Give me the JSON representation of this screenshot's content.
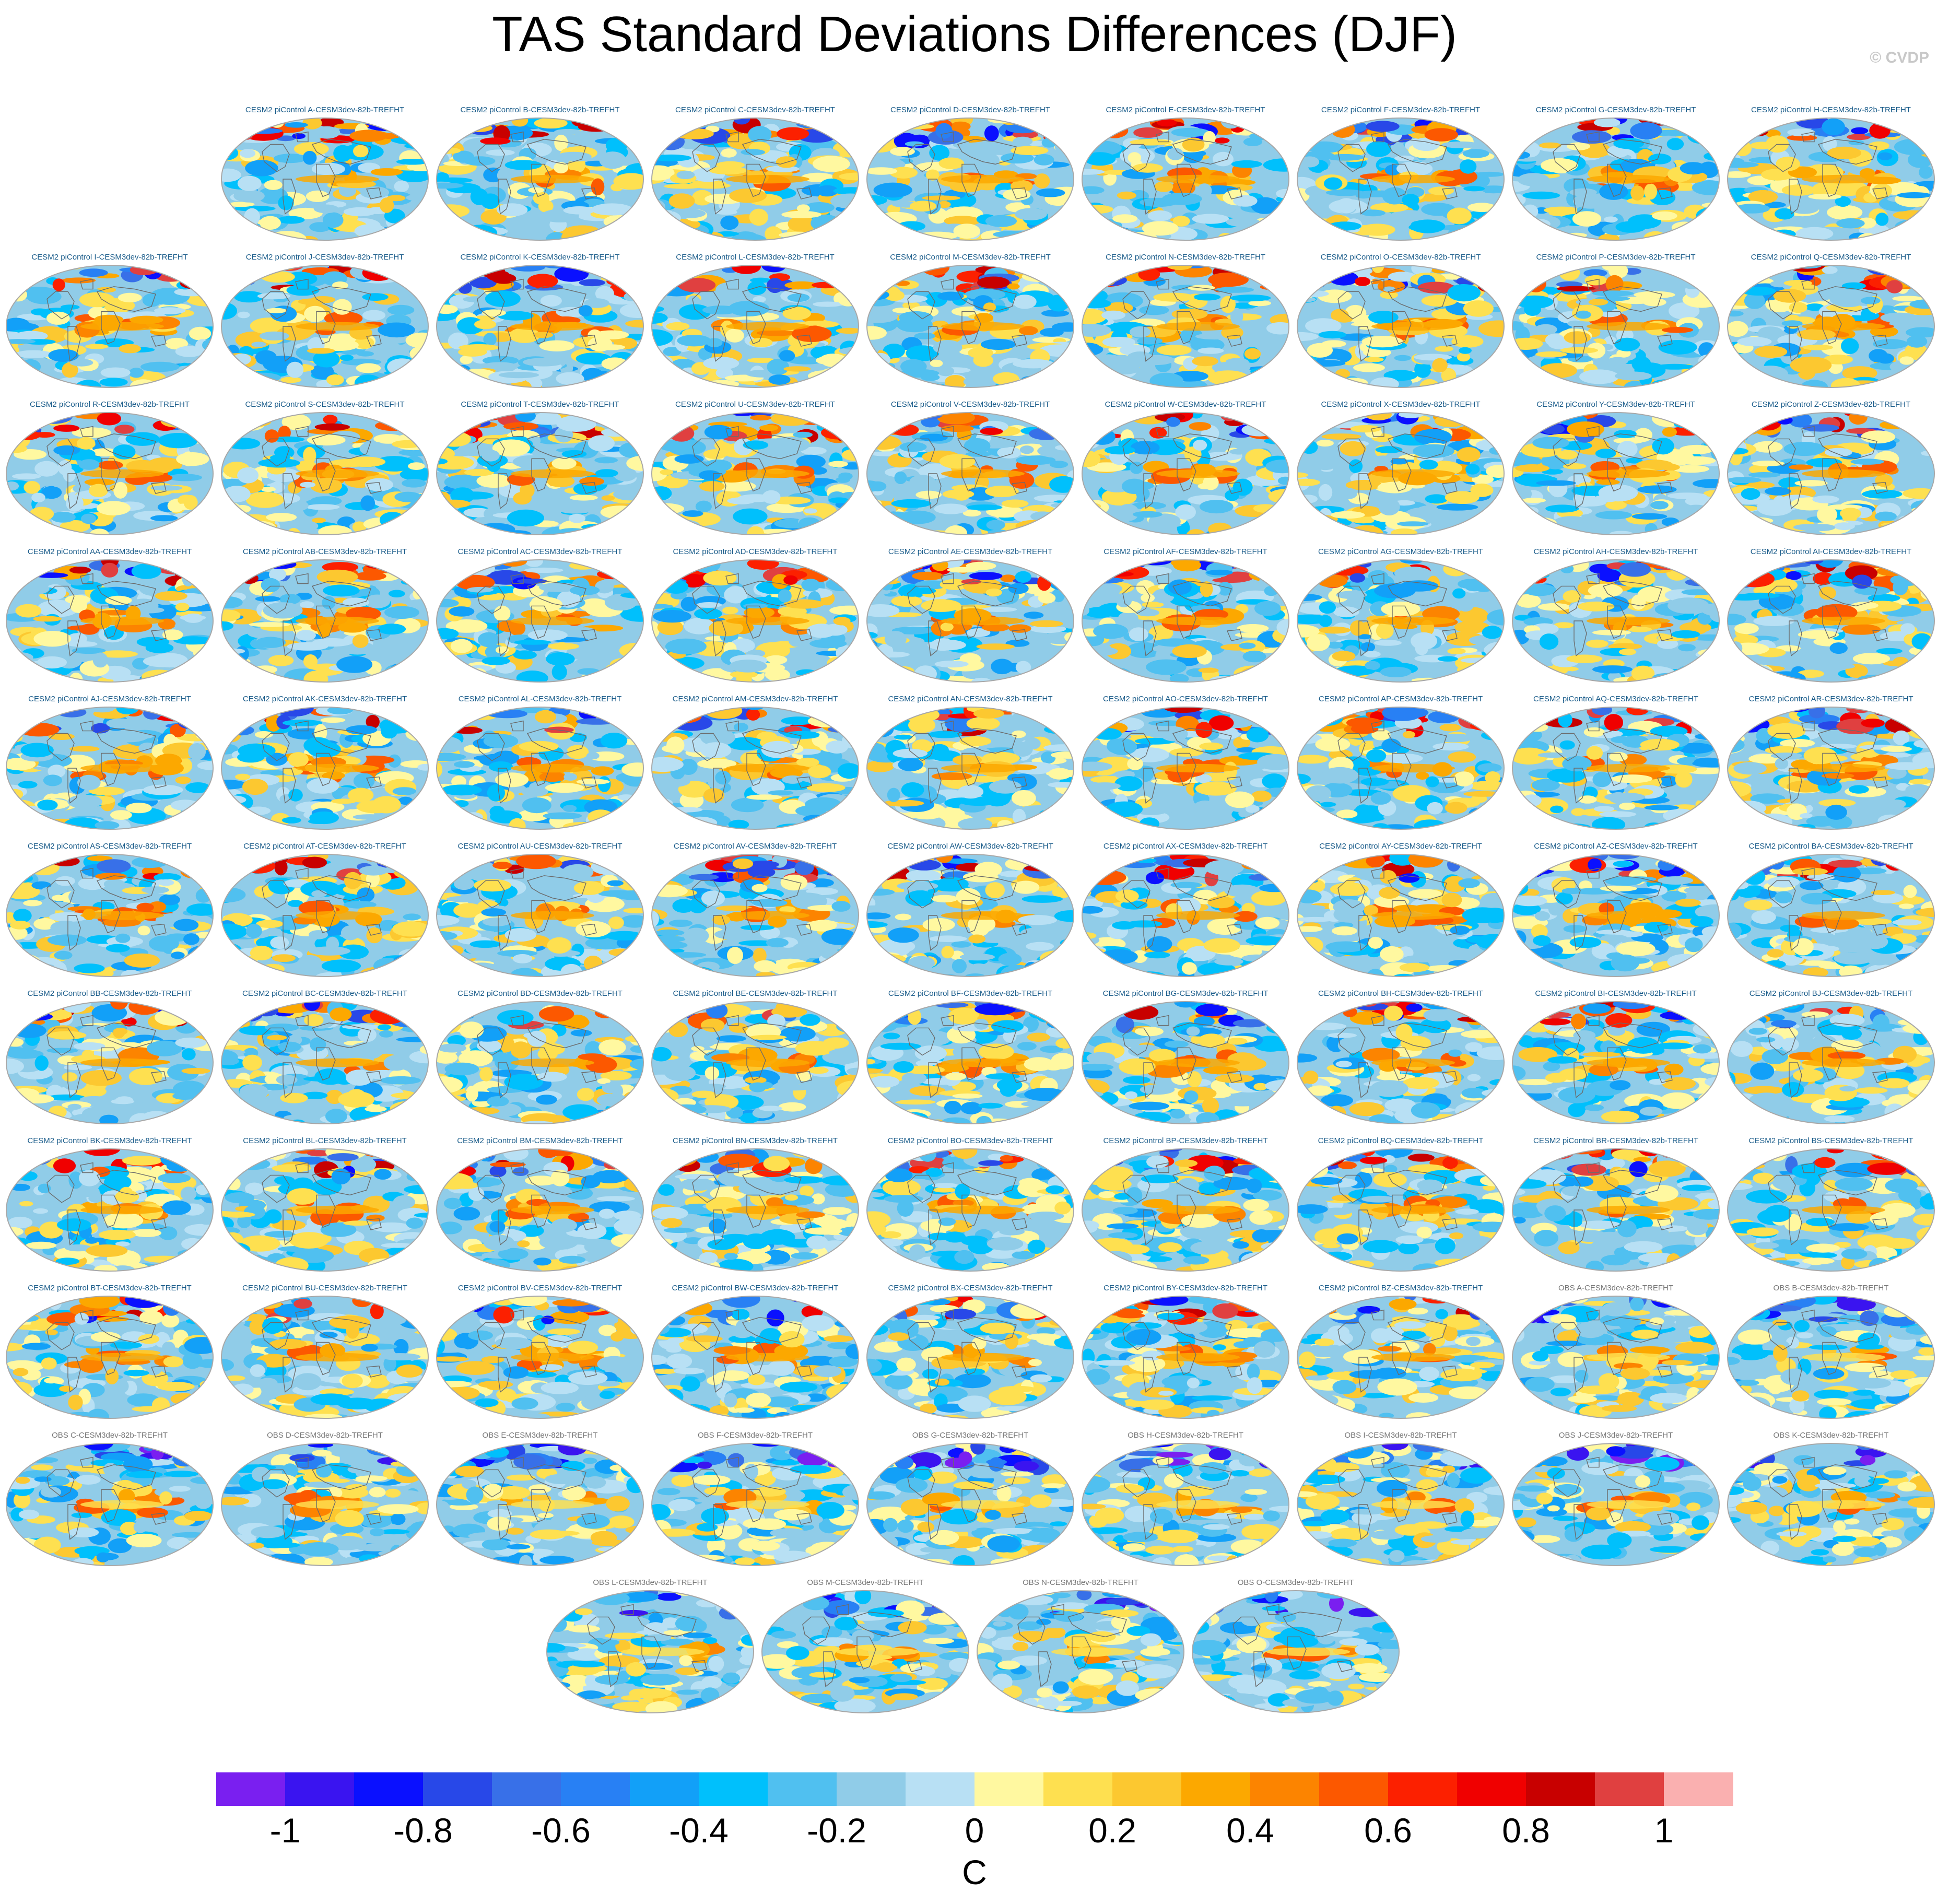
{
  "title": "TAS Standard Deviations Differences (DJF)",
  "copyright": "© CVDP",
  "chart_data": {
    "type": "heatmap",
    "description_variable": "TAS standard deviation difference",
    "season": "DJF",
    "projection": "Robinson",
    "colorbar": {
      "unit": "C",
      "levels": [
        -1.1,
        -1.0,
        -0.9,
        -0.8,
        -0.7,
        -0.6,
        -0.5,
        -0.4,
        -0.3,
        -0.2,
        -0.1,
        0,
        0.1,
        0.2,
        0.3,
        0.4,
        0.5,
        0.6,
        0.7,
        0.8,
        0.9,
        1.0,
        1.1
      ],
      "tick_labels": [
        "-1",
        "-0.8",
        "-0.6",
        "-0.4",
        "-0.2",
        "0",
        "0.2",
        "0.4",
        "0.6",
        "0.8",
        "1"
      ],
      "tick_values": [
        -1,
        -0.8,
        -0.6,
        -0.4,
        -0.2,
        0,
        0.2,
        0.4,
        0.6,
        0.8,
        1
      ],
      "colors": [
        "#7a1ff0",
        "#3a14f0",
        "#0a10ff",
        "#2848e8",
        "#3870e8",
        "#2880f4",
        "#12a0f8",
        "#00c0fc",
        "#50c0f0",
        "#90cce8",
        "#b8e0f4",
        "#fff8a0",
        "#fee050",
        "#fcc830",
        "#fca800",
        "#fc8400",
        "#fc5800",
        "#fc2000",
        "#f00000",
        "#c80000",
        "#e04040",
        "#fab0b0"
      ]
    },
    "panels": [
      "CESM2 piControl A-CESM3dev-82b-TREFHT",
      "CESM2 piControl B-CESM3dev-82b-TREFHT",
      "CESM2 piControl C-CESM3dev-82b-TREFHT",
      "CESM2 piControl D-CESM3dev-82b-TREFHT",
      "CESM2 piControl E-CESM3dev-82b-TREFHT",
      "CESM2 piControl F-CESM3dev-82b-TREFHT",
      "CESM2 piControl G-CESM3dev-82b-TREFHT",
      "CESM2 piControl H-CESM3dev-82b-TREFHT",
      "CESM2 piControl I-CESM3dev-82b-TREFHT",
      "CESM2 piControl J-CESM3dev-82b-TREFHT",
      "CESM2 piControl K-CESM3dev-82b-TREFHT",
      "CESM2 piControl L-CESM3dev-82b-TREFHT",
      "CESM2 piControl M-CESM3dev-82b-TREFHT",
      "CESM2 piControl N-CESM3dev-82b-TREFHT",
      "CESM2 piControl O-CESM3dev-82b-TREFHT",
      "CESM2 piControl P-CESM3dev-82b-TREFHT",
      "CESM2 piControl Q-CESM3dev-82b-TREFHT",
      "CESM2 piControl R-CESM3dev-82b-TREFHT",
      "CESM2 piControl S-CESM3dev-82b-TREFHT",
      "CESM2 piControl T-CESM3dev-82b-TREFHT",
      "CESM2 piControl U-CESM3dev-82b-TREFHT",
      "CESM2 piControl V-CESM3dev-82b-TREFHT",
      "CESM2 piControl W-CESM3dev-82b-TREFHT",
      "CESM2 piControl X-CESM3dev-82b-TREFHT",
      "CESM2 piControl Y-CESM3dev-82b-TREFHT",
      "CESM2 piControl Z-CESM3dev-82b-TREFHT",
      "CESM2 piControl AA-CESM3dev-82b-TREFHT",
      "CESM2 piControl AB-CESM3dev-82b-TREFHT",
      "CESM2 piControl AC-CESM3dev-82b-TREFHT",
      "CESM2 piControl AD-CESM3dev-82b-TREFHT",
      "CESM2 piControl AE-CESM3dev-82b-TREFHT",
      "CESM2 piControl AF-CESM3dev-82b-TREFHT",
      "CESM2 piControl AG-CESM3dev-82b-TREFHT",
      "CESM2 piControl AH-CESM3dev-82b-TREFHT",
      "CESM2 piControl AI-CESM3dev-82b-TREFHT",
      "CESM2 piControl AJ-CESM3dev-82b-TREFHT",
      "CESM2 piControl AK-CESM3dev-82b-TREFHT",
      "CESM2 piControl AL-CESM3dev-82b-TREFHT",
      "CESM2 piControl AM-CESM3dev-82b-TREFHT",
      "CESM2 piControl AN-CESM3dev-82b-TREFHT",
      "CESM2 piControl AO-CESM3dev-82b-TREFHT",
      "CESM2 piControl AP-CESM3dev-82b-TREFHT",
      "CESM2 piControl AQ-CESM3dev-82b-TREFHT",
      "CESM2 piControl AR-CESM3dev-82b-TREFHT",
      "CESM2 piControl AS-CESM3dev-82b-TREFHT",
      "CESM2 piControl AT-CESM3dev-82b-TREFHT",
      "CESM2 piControl AU-CESM3dev-82b-TREFHT",
      "CESM2 piControl AV-CESM3dev-82b-TREFHT",
      "CESM2 piControl AW-CESM3dev-82b-TREFHT",
      "CESM2 piControl AX-CESM3dev-82b-TREFHT",
      "CESM2 piControl AY-CESM3dev-82b-TREFHT",
      "CESM2 piControl AZ-CESM3dev-82b-TREFHT",
      "CESM2 piControl BA-CESM3dev-82b-TREFHT",
      "CESM2 piControl BB-CESM3dev-82b-TREFHT",
      "CESM2 piControl BC-CESM3dev-82b-TREFHT",
      "CESM2 piControl BD-CESM3dev-82b-TREFHT",
      "CESM2 piControl BE-CESM3dev-82b-TREFHT",
      "CESM2 piControl BF-CESM3dev-82b-TREFHT",
      "CESM2 piControl BG-CESM3dev-82b-TREFHT",
      "CESM2 piControl BH-CESM3dev-82b-TREFHT",
      "CESM2 piControl BI-CESM3dev-82b-TREFHT",
      "CESM2 piControl BJ-CESM3dev-82b-TREFHT",
      "CESM2 piControl BK-CESM3dev-82b-TREFHT",
      "CESM2 piControl BL-CESM3dev-82b-TREFHT",
      "CESM2 piControl BM-CESM3dev-82b-TREFHT",
      "CESM2 piControl BN-CESM3dev-82b-TREFHT",
      "CESM2 piControl BO-CESM3dev-82b-TREFHT",
      "CESM2 piControl BP-CESM3dev-82b-TREFHT",
      "CESM2 piControl BQ-CESM3dev-82b-TREFHT",
      "CESM2 piControl BR-CESM3dev-82b-TREFHT",
      "CESM2 piControl BS-CESM3dev-82b-TREFHT",
      "CESM2 piControl BT-CESM3dev-82b-TREFHT",
      "CESM2 piControl BU-CESM3dev-82b-TREFHT",
      "CESM2 piControl BV-CESM3dev-82b-TREFHT",
      "CESM2 piControl BW-CESM3dev-82b-TREFHT",
      "CESM2 piControl BX-CESM3dev-82b-TREFHT",
      "CESM2 piControl BY-CESM3dev-82b-TREFHT",
      "CESM2 piControl BZ-CESM3dev-82b-TREFHT",
      "OBS A-CESM3dev-82b-TREFHT",
      "OBS B-CESM3dev-82b-TREFHT",
      "OBS C-CESM3dev-82b-TREFHT",
      "OBS D-CESM3dev-82b-TREFHT",
      "OBS E-CESM3dev-82b-TREFHT",
      "OBS F-CESM3dev-82b-TREFHT",
      "OBS G-CESM3dev-82b-TREFHT",
      "OBS H-CESM3dev-82b-TREFHT",
      "OBS I-CESM3dev-82b-TREFHT",
      "OBS J-CESM3dev-82b-TREFHT",
      "OBS K-CESM3dev-82b-TREFHT",
      "OBS L-CESM3dev-82b-TREFHT",
      "OBS M-CESM3dev-82b-TREFHT",
      "OBS N-CESM3dev-82b-TREFHT",
      "OBS O-CESM3dev-82b-TREFHT"
    ]
  }
}
